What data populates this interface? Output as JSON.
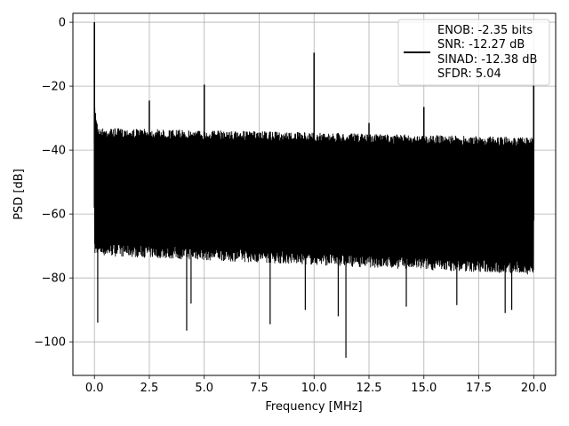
{
  "chart_data": {
    "type": "line",
    "xlabel": "Frequency [MHz]",
    "ylabel": "PSD [dB]",
    "xlim": [
      -0.98,
      21.0
    ],
    "ylim": [
      -110.5,
      2.8
    ],
    "xticks": [
      0.0,
      2.5,
      5.0,
      7.5,
      10.0,
      12.5,
      15.0,
      17.5,
      20.0
    ],
    "xtick_labels": [
      "0.0",
      "2.5",
      "5.0",
      "7.5",
      "10.0",
      "12.5",
      "15.0",
      "17.5",
      "20.0"
    ],
    "yticks": [
      0,
      -20,
      -40,
      -60,
      -80,
      -100
    ],
    "ytick_labels": [
      "0",
      "−20",
      "−40",
      "−60",
      "−80",
      "−100"
    ],
    "grid": true,
    "legend_position": "top-right",
    "legend_lines": [
      "ENOB: -2.35 bits",
      "SNR: -12.27 dB",
      "SINAD: -12.38 dB",
      "SFDR: 5.04"
    ],
    "series_color": "#000000",
    "noise_band": {
      "x_range": [
        0.0,
        20.0
      ],
      "upper_db": [
        -33,
        -36
      ],
      "lower_db": [
        -73,
        -79
      ]
    },
    "spurs": [
      {
        "x": 0.0,
        "y": 0.0
      },
      {
        "x": 2.5,
        "y": -24.5
      },
      {
        "x": 5.0,
        "y": -19.5
      },
      {
        "x": 10.0,
        "y": -9.5
      },
      {
        "x": 12.5,
        "y": -31.5
      },
      {
        "x": 15.0,
        "y": -26.5
      },
      {
        "x": 20.0,
        "y": -12.5
      }
    ],
    "deep_dips": [
      {
        "x": 0.15,
        "y": -94
      },
      {
        "x": 4.2,
        "y": -96.5
      },
      {
        "x": 4.4,
        "y": -88
      },
      {
        "x": 8.0,
        "y": -94.5
      },
      {
        "x": 9.6,
        "y": -90
      },
      {
        "x": 11.1,
        "y": -92
      },
      {
        "x": 11.45,
        "y": -105
      },
      {
        "x": 14.2,
        "y": -89
      },
      {
        "x": 16.5,
        "y": -88.5
      },
      {
        "x": 18.7,
        "y": -91
      },
      {
        "x": 19.0,
        "y": -90
      }
    ]
  }
}
